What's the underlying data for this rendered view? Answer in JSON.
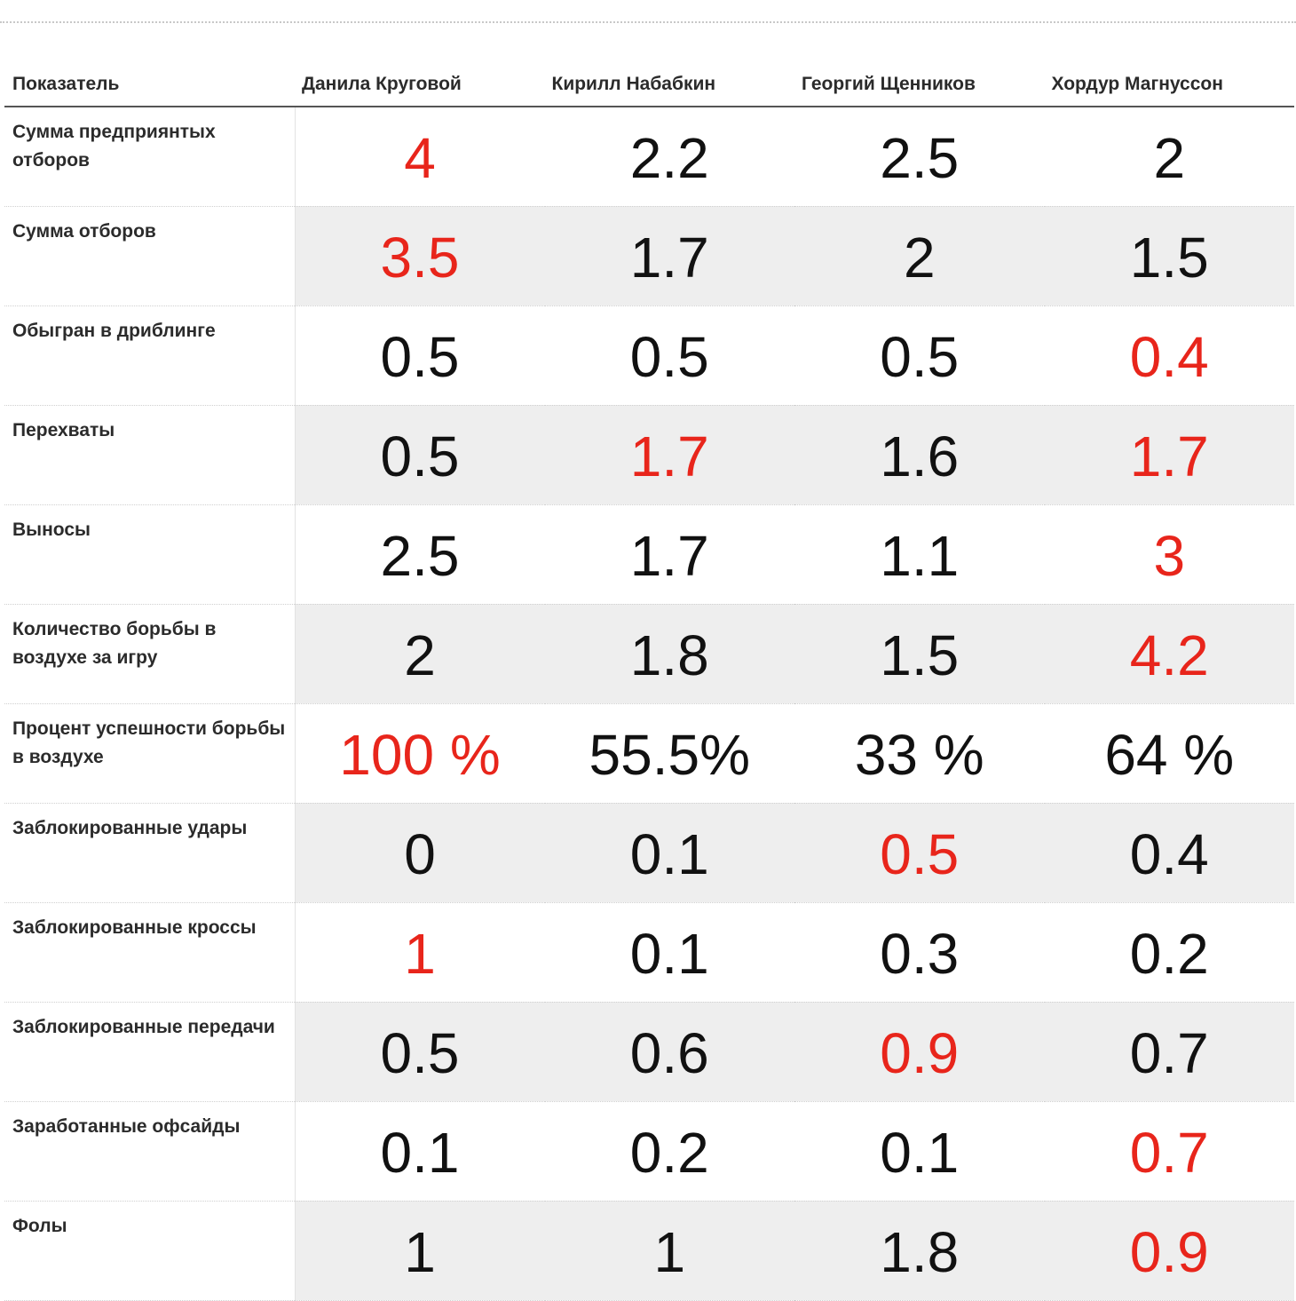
{
  "colors": {
    "highlight": "#e8251b",
    "text": "#111111",
    "zebra": "#eeeeee"
  },
  "header": {
    "indicator": "Показатель",
    "players": [
      "Данила Круговой",
      "Кирилл Набабкин",
      "Георгий Щенников",
      "Хордур Магнуссон"
    ]
  },
  "rows": [
    {
      "label": "Сумма предприянтых отборов",
      "values": [
        "4",
        "2.2",
        "2.5",
        "2"
      ],
      "highlight": [
        0
      ]
    },
    {
      "label": "Сумма отборов",
      "values": [
        "3.5",
        "1.7",
        "2",
        "1.5"
      ],
      "highlight": [
        0
      ]
    },
    {
      "label": "Обыгран в дриблинге",
      "values": [
        "0.5",
        "0.5",
        "0.5",
        "0.4"
      ],
      "highlight": [
        3
      ]
    },
    {
      "label": "Перехваты",
      "values": [
        "0.5",
        "1.7",
        "1.6",
        "1.7"
      ],
      "highlight": [
        1,
        3
      ]
    },
    {
      "label": "Выносы",
      "values": [
        "2.5",
        "1.7",
        "1.1",
        "3"
      ],
      "highlight": [
        3
      ]
    },
    {
      "label": "Количество борьбы в воздухе за игру",
      "values": [
        "2",
        "1.8",
        "1.5",
        "4.2"
      ],
      "highlight": [
        3
      ]
    },
    {
      "label": "Процент успешности борьбы в воздухе",
      "values": [
        "100 %",
        "55.5%",
        "33 %",
        "64 %"
      ],
      "highlight": [
        0
      ]
    },
    {
      "label": "Заблокированные удары",
      "values": [
        "0",
        "0.1",
        "0.5",
        "0.4"
      ],
      "highlight": [
        2
      ]
    },
    {
      "label": "Заблокированные кроссы",
      "values": [
        "1",
        "0.1",
        "0.3",
        "0.2"
      ],
      "highlight": [
        0
      ]
    },
    {
      "label": "Заблокированные передачи",
      "values": [
        "0.5",
        "0.6",
        "0.9",
        "0.7"
      ],
      "highlight": [
        2
      ]
    },
    {
      "label": "Заработанные офсайды",
      "values": [
        "0.1",
        "0.2",
        "0.1",
        "0.7"
      ],
      "highlight": [
        3
      ]
    },
    {
      "label": "Фолы",
      "values": [
        "1",
        "1",
        "1.8",
        "0.9"
      ],
      "highlight": [
        3
      ]
    }
  ]
}
